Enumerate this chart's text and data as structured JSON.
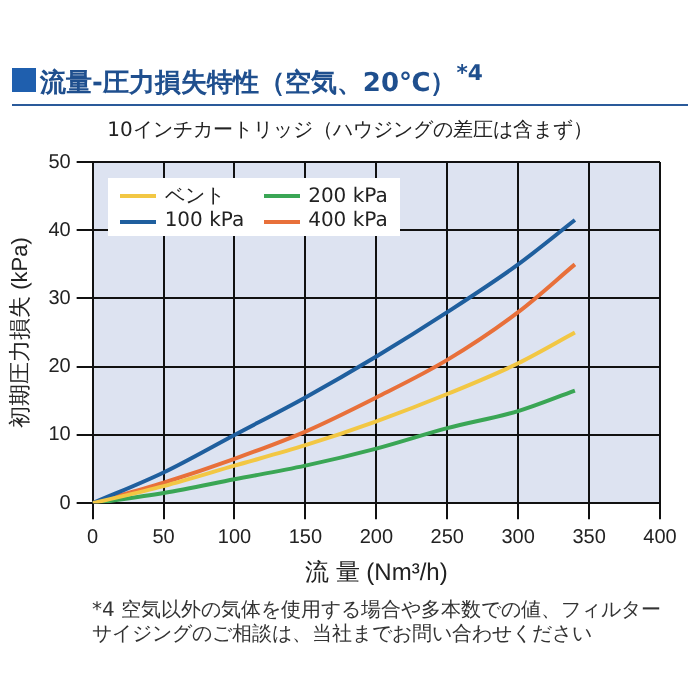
{
  "chart_data": {
    "type": "line",
    "title": "流量-圧力損失特性（空気、20℃）$^{*4}$",
    "subtitle": "10インチカートリッジ（ハウジングの差圧は含まず）",
    "xlabel": "流 量 (Nm³/h)",
    "ylabel": "初期圧力損失 (kPa)",
    "annotations": [
      "*4 空気以外の気体を使用する場合や多本数での値、フィルターサイジングのご相談は、当社までお問い合わせください"
    ],
    "x": [
      0,
      50,
      100,
      150,
      200,
      250,
      300,
      340
    ],
    "series": [
      {
        "name": "ベント",
        "color": "#f2c744",
        "values": [
          0,
          2.5,
          5.5,
          8.5,
          12,
          16,
          20.5,
          25
        ]
      },
      {
        "name": "100 kPa",
        "color": "#1f5f9e",
        "values": [
          0,
          4.5,
          10,
          15.5,
          21.5,
          28,
          35,
          41.5
        ]
      },
      {
        "name": "200 kPa",
        "color": "#3aa655",
        "values": [
          0,
          1.5,
          3.5,
          5.5,
          8,
          11,
          13.5,
          16.5
        ]
      },
      {
        "name": "400 kPa",
        "color": "#e8703a",
        "values": [
          0,
          3,
          6.5,
          10.5,
          15.5,
          21,
          28,
          35
        ]
      }
    ],
    "xlim": [
      0,
      400
    ],
    "xticks": [
      0,
      50,
      100,
      150,
      200,
      250,
      300,
      350,
      400
    ],
    "ylim": [
      0,
      50
    ],
    "yticks": [
      0,
      10,
      20,
      30,
      40,
      50
    ],
    "grid": true,
    "legend": "top left",
    "marker": "none",
    "line_style": "solid"
  }
}
